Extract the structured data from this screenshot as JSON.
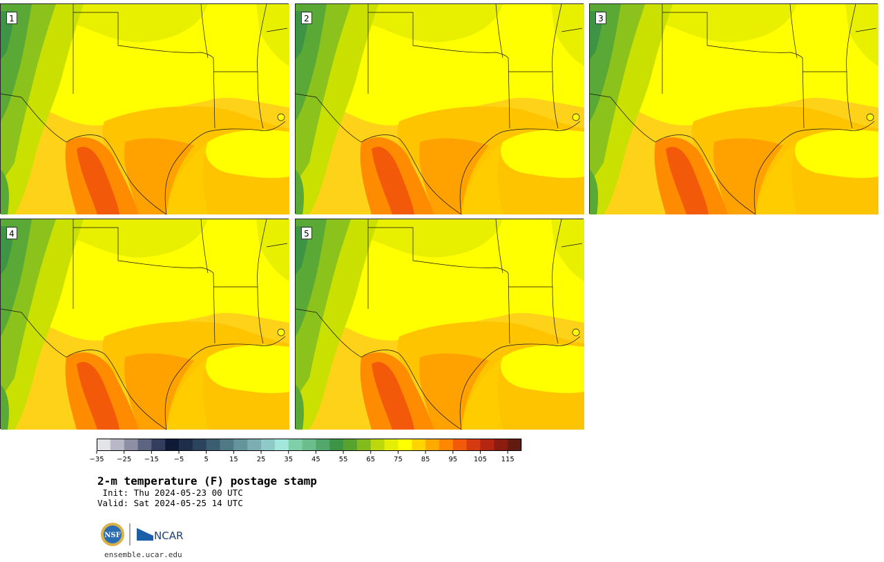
{
  "panels": [
    {
      "label": "1"
    },
    {
      "label": "2"
    },
    {
      "label": "3"
    },
    {
      "label": "4"
    },
    {
      "label": "5"
    }
  ],
  "colorbar": {
    "min": -35,
    "max": 120,
    "step": 5,
    "ticks": [
      -35,
      -25,
      -15,
      -5,
      5,
      15,
      25,
      35,
      45,
      55,
      65,
      75,
      85,
      95,
      105,
      115
    ],
    "colors": [
      "#e3e3ea",
      "#b8b8c7",
      "#8e8fa5",
      "#5d6480",
      "#333d5d",
      "#0e1a36",
      "#1e2d4a",
      "#2b445c",
      "#3b5e70",
      "#4f7a85",
      "#65959c",
      "#7aaeb2",
      "#8fcac8",
      "#a3e6dc",
      "#7fcfa8",
      "#6bbd8c",
      "#52a86c",
      "#3d9444",
      "#57a32e",
      "#84bb1c",
      "#bcd70c",
      "#e4ef05",
      "#ffff00",
      "#ffd400",
      "#ffaa00",
      "#ff8800",
      "#f25a0a",
      "#d63a10",
      "#b42612",
      "#8a1c10",
      "#631a10"
    ]
  },
  "title": "2-m temperature (F) postage stamp",
  "init": " Init: Thu 2024-05-23 00 UTC",
  "valid": "Valid: Sat 2024-05-25 14 UTC",
  "logos": {
    "nsf": "NSF",
    "ncar": "NCAR"
  },
  "site": "ensemble.ucar.edu"
}
